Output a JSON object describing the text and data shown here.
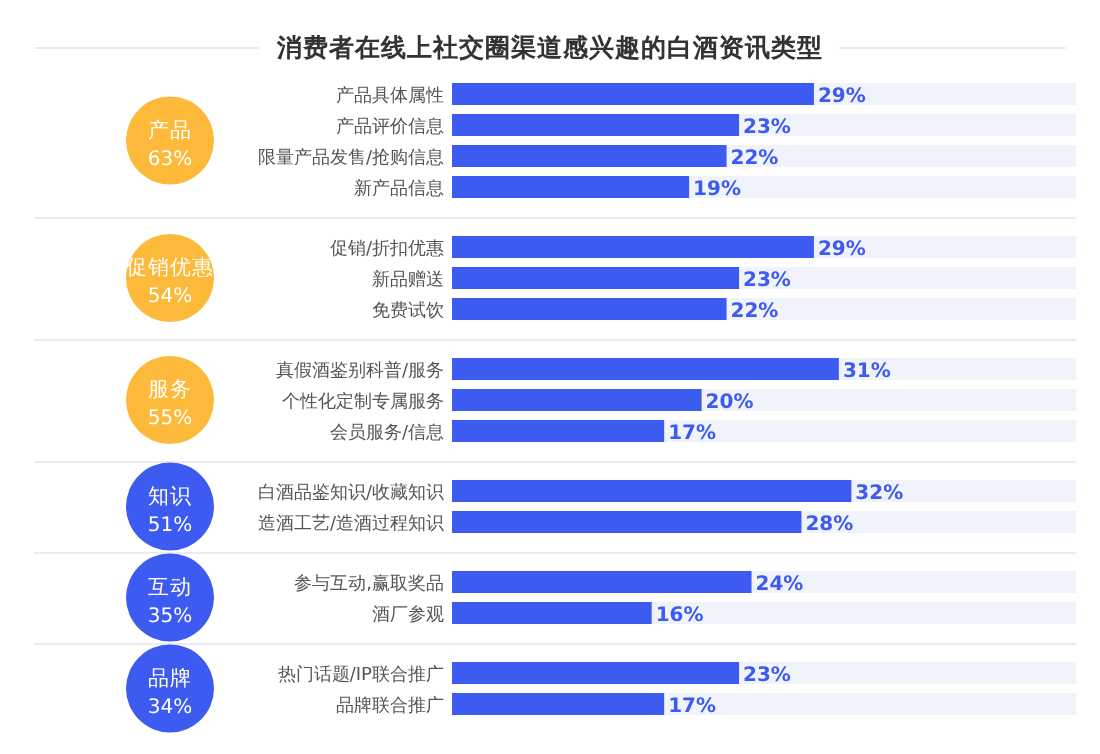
{
  "chart_data": {
    "type": "bar",
    "orientation": "horizontal",
    "title": "消费者在线上社交圈渠道感兴趣的白酒资讯类型",
    "categories": [
      "产品具体属性",
      "产品评价信息",
      "限量产品发售/抢购信息",
      "新产品信息",
      null,
      "促销/折扣优惠",
      "新品赠送",
      "免费试饮",
      null,
      "真假酒鉴别科普/服务",
      "个性化定制专属服务",
      "会员服务/信息",
      null,
      "白酒品鉴知识/收藏知识",
      "造酒工艺/造酒过程知识",
      null,
      "参与互动,赢取奖品",
      "酒厂参观",
      null,
      "热门话题/IP联合推广",
      "品牌联合推广"
    ],
    "values": [
      29,
      23,
      22,
      19,
      null,
      29,
      23,
      22,
      null,
      31,
      20,
      17,
      null,
      32,
      28,
      null,
      24,
      16,
      null,
      23,
      17
    ],
    "value_labels": [
      "29%",
      "23%",
      "22%",
      "19%",
      null,
      "29%",
      "23%",
      "22%",
      null,
      "31%",
      "20%",
      "17%",
      null,
      "32%",
      "28%",
      null,
      "24%",
      "16%",
      null,
      "23%",
      "17%"
    ],
    "color": "#3d5af1",
    "xlim": [
      0,
      50
    ],
    "grid": "y",
    "annotations": [
      "产品",
      "63%",
      "促销优惠",
      "54%",
      "服务",
      "55%",
      "知识",
      "51%",
      "互动",
      "35%",
      "品牌",
      "34%"
    ]
  }
}
